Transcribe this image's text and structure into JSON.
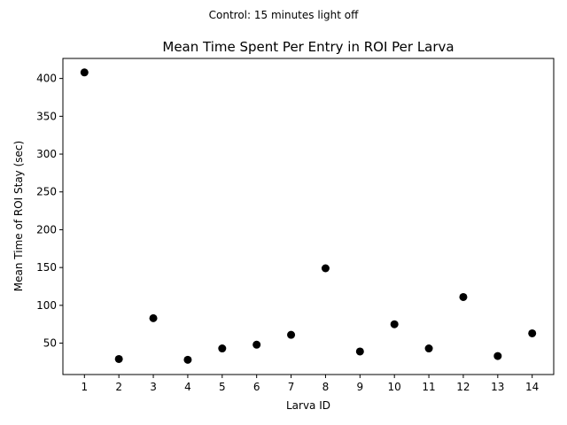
{
  "chart_data": {
    "type": "scatter",
    "suptitle": "Control: 15 minutes light off",
    "title": "Mean Time Spent Per Entry in ROI Per Larva",
    "xlabel": "Larva ID",
    "ylabel": "Mean Time of ROI Stay (sec)",
    "xlim": [
      0.375,
      14.625
    ],
    "ylim": [
      8.5,
      426.5
    ],
    "x_ticks": [
      1,
      2,
      3,
      4,
      5,
      6,
      7,
      8,
      9,
      10,
      11,
      12,
      13,
      14
    ],
    "y_ticks": [
      50,
      100,
      150,
      200,
      250,
      300,
      350,
      400
    ],
    "grid": false,
    "marker_color": "#000000",
    "series": [
      {
        "x": [
          1,
          2,
          3,
          4,
          5,
          6,
          7,
          8,
          9,
          10,
          11,
          12,
          13,
          14
        ],
        "y": [
          408,
          29,
          83,
          28,
          43,
          48,
          61,
          149,
          39,
          75,
          43,
          111,
          33,
          63
        ]
      }
    ]
  }
}
